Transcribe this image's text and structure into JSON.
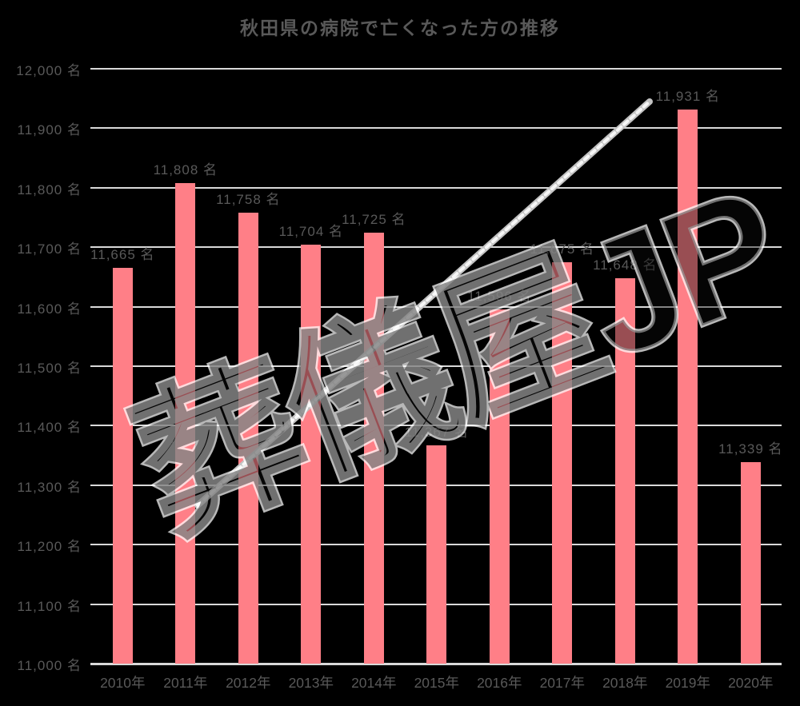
{
  "title": "秋田県の病院で亡くなった方の推移",
  "watermark": "葬儀屋JP",
  "chart_data": {
    "type": "bar",
    "title": "秋田県の病院で亡くなった方の推移",
    "categories": [
      "2010年",
      "2011年",
      "2012年",
      "2013年",
      "2014年",
      "2015年",
      "2016年",
      "2017年",
      "2018年",
      "2019年",
      "2020年"
    ],
    "values": [
      11665,
      11808,
      11758,
      11704,
      11725,
      11367,
      11596,
      11675,
      11648,
      11931,
      11339
    ],
    "bar_labels": [
      "11,665 名",
      "11,808 名",
      "11,758 名",
      "11,704 名",
      "11,725 名",
      "11,367 名",
      "11,596 名",
      "11,675 名",
      "11,648 名",
      "11,931 名",
      "11,339 名"
    ],
    "y_ticks": [
      "12,000 名",
      "11,900 名",
      "11,800 名",
      "11,700 名",
      "11,600 名",
      "11,500 名",
      "11,400 名",
      "11,300 名",
      "11,200 名",
      "11,100 名",
      "11,000 名"
    ],
    "ylim": [
      11000,
      12000
    ],
    "y_step": 100,
    "xlabel": "",
    "ylabel": "",
    "grid": true,
    "legend": false,
    "annotations": [
      "upward diagonal trend arrow from 2011 area to 11,931 名 peak",
      "watermark 葬儀屋JP overlaid diagonally"
    ],
    "colors": {
      "bar": "#ff7f87",
      "gridline": "#d9d9d9",
      "text": "#595959",
      "trend_line": "#c3c3c3",
      "trend_line_highlight": "#ffffff",
      "background": "#000000",
      "watermark_outline": "#ffffff"
    }
  }
}
